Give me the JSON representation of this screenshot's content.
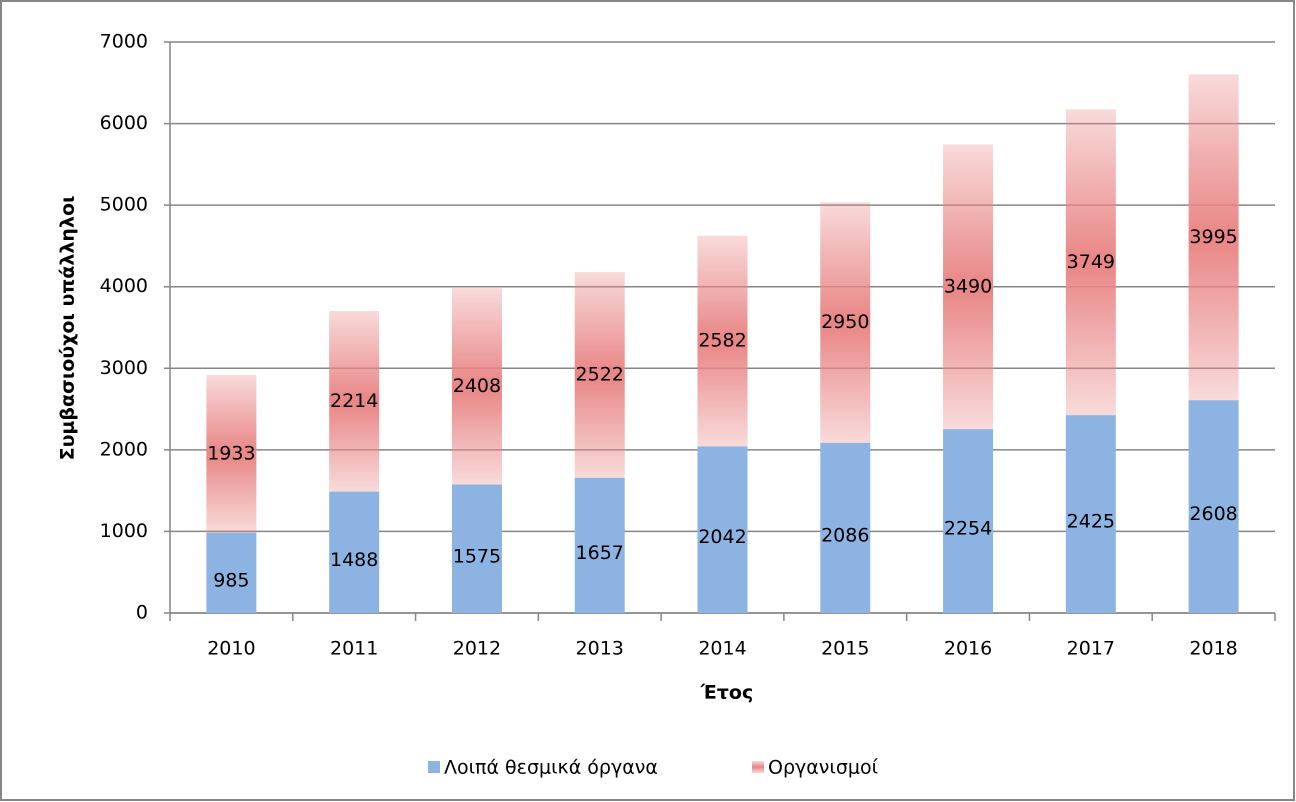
{
  "chart_data": {
    "type": "stacked_bar",
    "x_label": "Έτος",
    "y_label": "Συμβασιούχοι υπάλληλοι",
    "categories": [
      "2010",
      "2011",
      "2012",
      "2013",
      "2014",
      "2015",
      "2016",
      "2017",
      "2018"
    ],
    "series": [
      {
        "name": "Λοιπά θεσμικά όργανα",
        "color": "#8db3e2",
        "values": [
          985,
          1488,
          1575,
          1657,
          2042,
          2086,
          2254,
          2425,
          2608
        ]
      },
      {
        "name": "Οργανισμοί",
        "color": "#e98585",
        "values": [
          1933,
          2214,
          2408,
          2522,
          2582,
          2950,
          3490,
          3749,
          3995
        ]
      }
    ],
    "ylim": [
      0,
      7000
    ],
    "yticks": [
      0,
      1000,
      2000,
      3000,
      4000,
      5000,
      6000,
      7000
    ],
    "grid": true,
    "legend": "bottom"
  }
}
